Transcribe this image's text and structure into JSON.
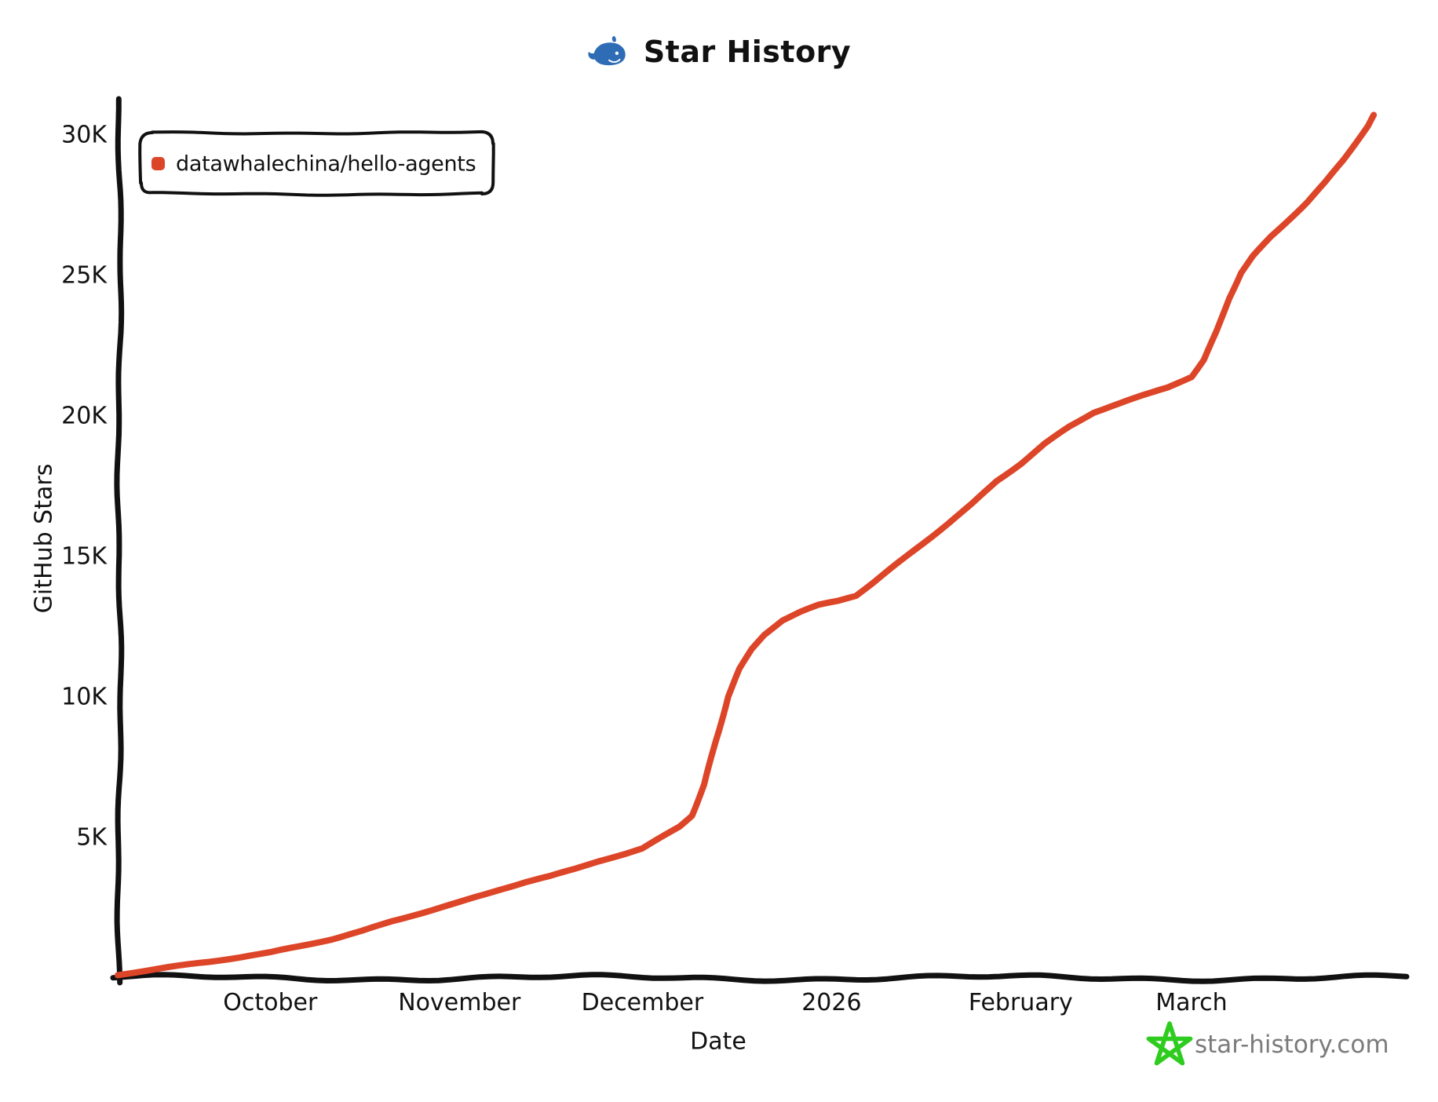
{
  "title": "Star History",
  "legend": {
    "series_label": "datawhalechina/hello-agents"
  },
  "axes": {
    "x_title": "Date",
    "y_title": "GitHub Stars"
  },
  "watermark": {
    "label": "star-history.com"
  },
  "colors": {
    "series": "#dd4528",
    "axis": "#111111",
    "whale_blue": "#2e6cb5",
    "star_green": "#2ecc1e",
    "watermark_gray": "#7b7b7b"
  },
  "chart_data": {
    "type": "line",
    "title": "Star History",
    "xlabel": "Date",
    "ylabel": "GitHub Stars",
    "x_range": [
      "2025-09-06",
      "2026-04-05"
    ],
    "y_range": [
      0,
      30000
    ],
    "grid": false,
    "legend_position": "top-left",
    "x_ticks": [
      {
        "date": "2025-10-01",
        "label": "October"
      },
      {
        "date": "2025-11-01",
        "label": "November"
      },
      {
        "date": "2025-12-01",
        "label": "December"
      },
      {
        "date": "2026-01-01",
        "label": "2026"
      },
      {
        "date": "2026-02-01",
        "label": "February"
      },
      {
        "date": "2026-03-01",
        "label": "March"
      }
    ],
    "y_ticks": [
      {
        "value": 5000,
        "label": "5K"
      },
      {
        "value": 10000,
        "label": "10K"
      },
      {
        "value": 15000,
        "label": "15K"
      },
      {
        "value": 20000,
        "label": "20K"
      },
      {
        "value": 25000,
        "label": "25K"
      },
      {
        "value": 30000,
        "label": "30K"
      }
    ],
    "series": [
      {
        "name": "datawhalechina/hello-agents",
        "color": "#dd4528",
        "points": [
          [
            "2025-09-06",
            100
          ],
          [
            "2025-09-11",
            250
          ],
          [
            "2025-09-16",
            400
          ],
          [
            "2025-09-21",
            550
          ],
          [
            "2025-09-26",
            720
          ],
          [
            "2025-10-01",
            900
          ],
          [
            "2025-10-06",
            1150
          ],
          [
            "2025-10-11",
            1400
          ],
          [
            "2025-10-16",
            1700
          ],
          [
            "2025-10-21",
            2050
          ],
          [
            "2025-10-26",
            2350
          ],
          [
            "2025-11-01",
            2700
          ],
          [
            "2025-11-05",
            2950
          ],
          [
            "2025-11-08",
            3150
          ],
          [
            "2025-11-12",
            3400
          ],
          [
            "2025-11-16",
            3600
          ],
          [
            "2025-11-20",
            3850
          ],
          [
            "2025-11-24",
            4150
          ],
          [
            "2025-11-28",
            4400
          ],
          [
            "2025-12-01",
            4600
          ],
          [
            "2025-12-04",
            5000
          ],
          [
            "2025-12-07",
            5400
          ],
          [
            "2025-12-09",
            5800
          ],
          [
            "2025-12-11",
            6900
          ],
          [
            "2025-12-13",
            8500
          ],
          [
            "2025-12-15",
            10000
          ],
          [
            "2025-12-17",
            11000
          ],
          [
            "2025-12-19",
            11700
          ],
          [
            "2025-12-21",
            12200
          ],
          [
            "2025-12-24",
            12700
          ],
          [
            "2025-12-27",
            13000
          ],
          [
            "2025-12-30",
            13250
          ],
          [
            "2026-01-02",
            13400
          ],
          [
            "2026-01-05",
            13600
          ],
          [
            "2026-01-08",
            14100
          ],
          [
            "2026-01-12",
            14800
          ],
          [
            "2026-01-16",
            15500
          ],
          [
            "2026-01-20",
            16200
          ],
          [
            "2026-01-24",
            16900
          ],
          [
            "2026-01-28",
            17700
          ],
          [
            "2026-02-01",
            18300
          ],
          [
            "2026-02-05",
            19000
          ],
          [
            "2026-02-09",
            19600
          ],
          [
            "2026-02-13",
            20100
          ],
          [
            "2026-02-17",
            20400
          ],
          [
            "2026-02-21",
            20700
          ],
          [
            "2026-02-25",
            21000
          ],
          [
            "2026-03-01",
            21400
          ],
          [
            "2026-03-03",
            22000
          ],
          [
            "2026-03-05",
            23000
          ],
          [
            "2026-03-07",
            24200
          ],
          [
            "2026-03-09",
            25100
          ],
          [
            "2026-03-11",
            25700
          ],
          [
            "2026-03-14",
            26400
          ],
          [
            "2026-03-17",
            27000
          ],
          [
            "2026-03-20",
            27600
          ],
          [
            "2026-03-23",
            28300
          ],
          [
            "2026-03-26",
            29100
          ],
          [
            "2026-03-28",
            29700
          ],
          [
            "2026-03-30",
            30300
          ],
          [
            "2026-03-31",
            30700
          ]
        ]
      }
    ]
  }
}
